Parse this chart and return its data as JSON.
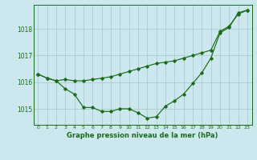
{
  "title": "Graphe pression niveau de la mer (hPa)",
  "bg_color": "#cce8ee",
  "grid_color": "#aacccc",
  "line_color": "#1a6b1a",
  "xlim": [
    -0.5,
    23.5
  ],
  "ylim": [
    1014.4,
    1018.9
  ],
  "yticks": [
    1015,
    1016,
    1017,
    1018
  ],
  "xticks": [
    0,
    1,
    2,
    3,
    4,
    5,
    6,
    7,
    8,
    9,
    10,
    11,
    12,
    13,
    14,
    15,
    16,
    17,
    18,
    19,
    20,
    21,
    22,
    23
  ],
  "line1": [
    1016.3,
    1016.15,
    1016.05,
    1015.75,
    1015.55,
    1015.05,
    1015.05,
    1014.9,
    1014.9,
    1015.0,
    1015.0,
    1014.85,
    1014.65,
    1014.7,
    1015.1,
    1015.3,
    1015.55,
    1015.95,
    1016.35,
    1016.9,
    1017.85,
    1018.05,
    1018.6,
    1018.7
  ],
  "line2": [
    1016.3,
    1016.15,
    1016.05,
    1016.1,
    1016.05,
    1016.05,
    1016.1,
    1016.15,
    1016.2,
    1016.3,
    1016.4,
    1016.5,
    1016.6,
    1016.7,
    1016.75,
    1016.8,
    1016.9,
    1017.0,
    1017.1,
    1017.2,
    1017.9,
    1018.1,
    1018.55,
    1018.7
  ],
  "figsize": [
    3.2,
    2.0
  ],
  "dpi": 100
}
